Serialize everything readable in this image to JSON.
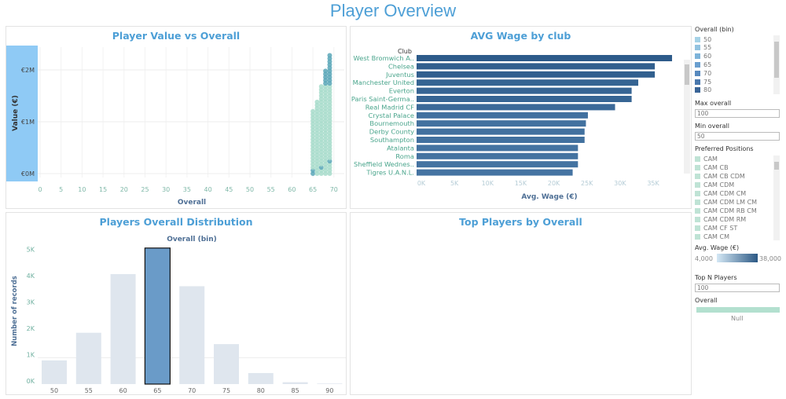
{
  "dashboard": {
    "title": "Player Overview"
  },
  "colors": {
    "title": "#4d9fd6",
    "highlight_axis": "#8fcaf5",
    "dot": "#a8dccb",
    "bar_dark": "#2d5b8a",
    "bar_light": "#6a9bc8",
    "hist_selected": "#6a9bc8",
    "hist_other": "#dfe6ee"
  },
  "chart_data": [
    {
      "type": "scatter",
      "title": "Player Value vs Overall",
      "xlabel": "Overall",
      "ylabel": "Value (€)",
      "xlim": [
        0,
        70
      ],
      "ylim": [
        0,
        2300000
      ],
      "xticks": [
        "0",
        "5",
        "10",
        "15",
        "20",
        "25",
        "30",
        "35",
        "40",
        "45",
        "50",
        "55",
        "60",
        "65",
        "70"
      ],
      "yticks": [
        "€0M",
        "€1M",
        "€2M"
      ],
      "grid": true,
      "points": [
        {
          "x": 65,
          "max": 1200000
        },
        {
          "x": 66,
          "max": 1400000
        },
        {
          "x": 67,
          "max": 1700000
        },
        {
          "x": 68,
          "max": 2000000
        },
        {
          "x": 69,
          "max": 2300000
        }
      ]
    },
    {
      "type": "bar",
      "orientation": "horizontal",
      "title": "AVG Wage by club",
      "row_header": "Club",
      "xlabel": "Avg. Wage (€)",
      "xlim": [
        0,
        38000
      ],
      "xticks": [
        "0K",
        "5K",
        "10K",
        "15K",
        "20K",
        "25K",
        "30K",
        "35K"
      ],
      "categories": [
        "West Bromwich A..",
        "Chelsea",
        "Juventus",
        "Manchester United",
        "Everton",
        "Paris Saint-Germa..",
        "Real Madrid CF",
        "Crystal Palace",
        "Bournemouth",
        "Derby County",
        "Southampton",
        "Atalanta",
        "Roma",
        "Sheffield Wednes..",
        "Tigres U.A.N.L."
      ],
      "values": [
        38200,
        35600,
        35600,
        33100,
        32100,
        32100,
        29600,
        25500,
        25200,
        25000,
        25000,
        24000,
        24000,
        24000,
        23200
      ]
    },
    {
      "type": "bar",
      "title": "Players Overall Distribution",
      "xlabel": "Overall (bin)",
      "ylabel": "Number of records",
      "ylim": [
        0,
        5300
      ],
      "yticks": [
        "0K",
        "1K",
        "2K",
        "3K",
        "4K",
        "5K"
      ],
      "categories": [
        "50",
        "55",
        "60",
        "65",
        "70",
        "75",
        "80",
        "85",
        "90"
      ],
      "values": [
        900,
        1950,
        4180,
        5170,
        3720,
        1520,
        420,
        70,
        20
      ],
      "selected": "65"
    },
    {
      "type": "table",
      "title": "Top Players by Overall",
      "rows": []
    }
  ],
  "sidebar": {
    "overall_bin": {
      "label": "Overall (bin)",
      "items": [
        {
          "v": "50",
          "c": "#a6d2e6"
        },
        {
          "v": "55",
          "c": "#93c3e0"
        },
        {
          "v": "60",
          "c": "#7db3d9"
        },
        {
          "v": "65",
          "c": "#6a9fcf"
        },
        {
          "v": "70",
          "c": "#5789be"
        },
        {
          "v": "75",
          "c": "#4a78ad"
        },
        {
          "v": "80",
          "c": "#3a6597"
        }
      ]
    },
    "max_overall": {
      "label": "Max overall",
      "value": "100"
    },
    "min_overall": {
      "label": "Min overall",
      "value": "50"
    },
    "positions": {
      "label": "Preferred Positions",
      "items": [
        "CAM",
        "CAM CB",
        "CAM CB CDM",
        "CAM CDM",
        "CAM CDM CM",
        "CAM CDM LM CM",
        "CAM CDM RB CM",
        "CAM CDM RM",
        "CAM CF ST",
        "CAM CM"
      ]
    },
    "wage_legend": {
      "label": "Avg. Wage (€)",
      "min": "4,000",
      "max": "38,000"
    },
    "top_n": {
      "label": "Top N Players",
      "value": "100"
    },
    "overall_legend": {
      "label": "Overall",
      "null_label": "Null"
    }
  }
}
